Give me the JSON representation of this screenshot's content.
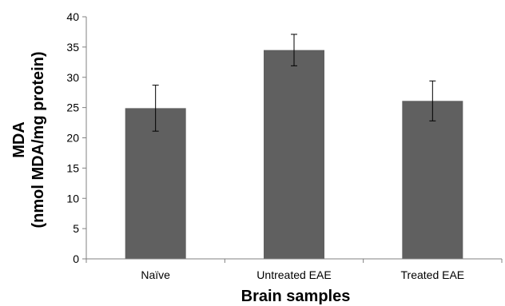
{
  "chart_data": {
    "type": "bar",
    "categories": [
      "Naïve",
      "Untreated EAE",
      "Treated EAE"
    ],
    "values": [
      24.9,
      34.5,
      26.1
    ],
    "error": [
      3.8,
      2.6,
      3.3
    ],
    "xlabel": "Brain samples",
    "ylabel_line1": "MDA",
    "ylabel_line2": "(nmol MDA/mg protein)",
    "ylim": [
      0,
      40
    ],
    "yticks": [
      0,
      5,
      10,
      15,
      20,
      25,
      30,
      35,
      40
    ],
    "bar_color": "#606060",
    "grid": false
  }
}
